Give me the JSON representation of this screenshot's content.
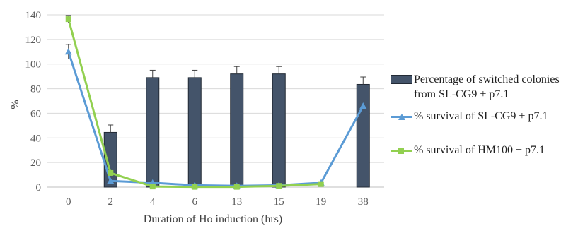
{
  "chart_data": {
    "type": "bar+line",
    "categories": [
      "0",
      "2",
      "4",
      "6",
      "13",
      "15",
      "19",
      "38"
    ],
    "ylabel": "%",
    "xlabel": "Duration of  Ho induction (hrs)",
    "ylim": [
      0,
      140
    ],
    "yticks": [
      "0",
      "20",
      "40",
      "60",
      "80",
      "100",
      "120",
      "140"
    ],
    "grid": "horizontal",
    "legend_position": "right",
    "series": [
      {
        "name": "Percentage of switched colonies from SL-CG9 + p7.1",
        "kind": "bar",
        "color": "#44546a",
        "values": [
          null,
          44.5,
          89,
          89,
          92,
          92,
          null,
          83.5
        ],
        "error": [
          null,
          6,
          6,
          6,
          6,
          6,
          null,
          6
        ]
      },
      {
        "name": "% survival of SL-CG9 + p7.1",
        "kind": "line",
        "marker": "triangle",
        "color": "#5b9bd5",
        "values": [
          110,
          5,
          3.5,
          1.5,
          1,
          1.5,
          3.5,
          66
        ],
        "error": [
          110,
          null,
          null,
          null,
          null,
          null,
          null,
          null
        ],
        "error_size": [
          6,
          null,
          null,
          null,
          null,
          null,
          null,
          null
        ]
      },
      {
        "name": "% survival of HM100 + p7.1",
        "kind": "line",
        "marker": "square",
        "color": "#92d050",
        "values": [
          136.5,
          11.5,
          0.5,
          0.2,
          0.2,
          1,
          2.5,
          null
        ],
        "error_size": [
          3,
          null,
          null,
          null,
          null,
          null,
          null,
          null
        ]
      }
    ]
  }
}
